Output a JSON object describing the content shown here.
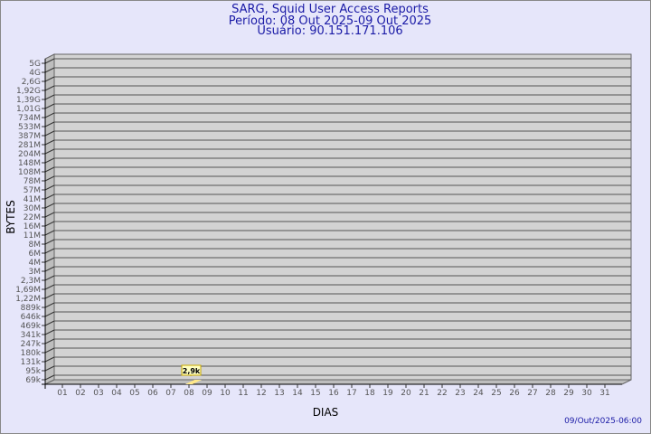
{
  "header": {
    "title": "SARG, Squid User Access Reports",
    "period": "Período: 08 Out 2025-09 Out 2025",
    "user": "Usuário: 90.151.171.106"
  },
  "footer": {
    "timestamp": "09/Out/2025-06:00"
  },
  "chart_data": {
    "type": "bar",
    "title": "SARG, Squid User Access Reports",
    "xlabel": "DIAS",
    "ylabel": "BYTES",
    "y_scale": "log",
    "grid": true,
    "categories": [
      "01",
      "02",
      "03",
      "04",
      "05",
      "06",
      "07",
      "08",
      "09",
      "10",
      "11",
      "12",
      "13",
      "14",
      "15",
      "16",
      "17",
      "18",
      "19",
      "20",
      "21",
      "22",
      "23",
      "24",
      "25",
      "26",
      "27",
      "28",
      "29",
      "30",
      "31"
    ],
    "y_ticks": [
      "5G",
      "4G",
      "2,6G",
      "1,92G",
      "1,39G",
      "1,01G",
      "734M",
      "533M",
      "387M",
      "281M",
      "204M",
      "148M",
      "108M",
      "78M",
      "57M",
      "41M",
      "30M",
      "22M",
      "16M",
      "11M",
      "8M",
      "6M",
      "4M",
      "3M",
      "2,3M",
      "1,69M",
      "1,22M",
      "889k",
      "646k",
      "469k",
      "341k",
      "247k",
      "180k",
      "131k",
      "95k",
      "69k"
    ],
    "series": [
      {
        "values": [
          null,
          null,
          null,
          null,
          null,
          null,
          null,
          2900,
          null,
          null,
          null,
          null,
          null,
          null,
          null,
          null,
          null,
          null,
          null,
          null,
          null,
          null,
          null,
          null,
          null,
          null,
          null,
          null,
          null,
          null,
          null
        ]
      }
    ],
    "data_labels": {
      "08": "2,9k"
    },
    "colors": {
      "wall": "#d3d3d3",
      "side": "#bebebe",
      "bar": "#ffe88a",
      "label_bg": "#ffffc0",
      "label_border": "#c8a800",
      "grid": "#555555",
      "text": "#555555",
      "title": "#1a1aa6"
    }
  }
}
